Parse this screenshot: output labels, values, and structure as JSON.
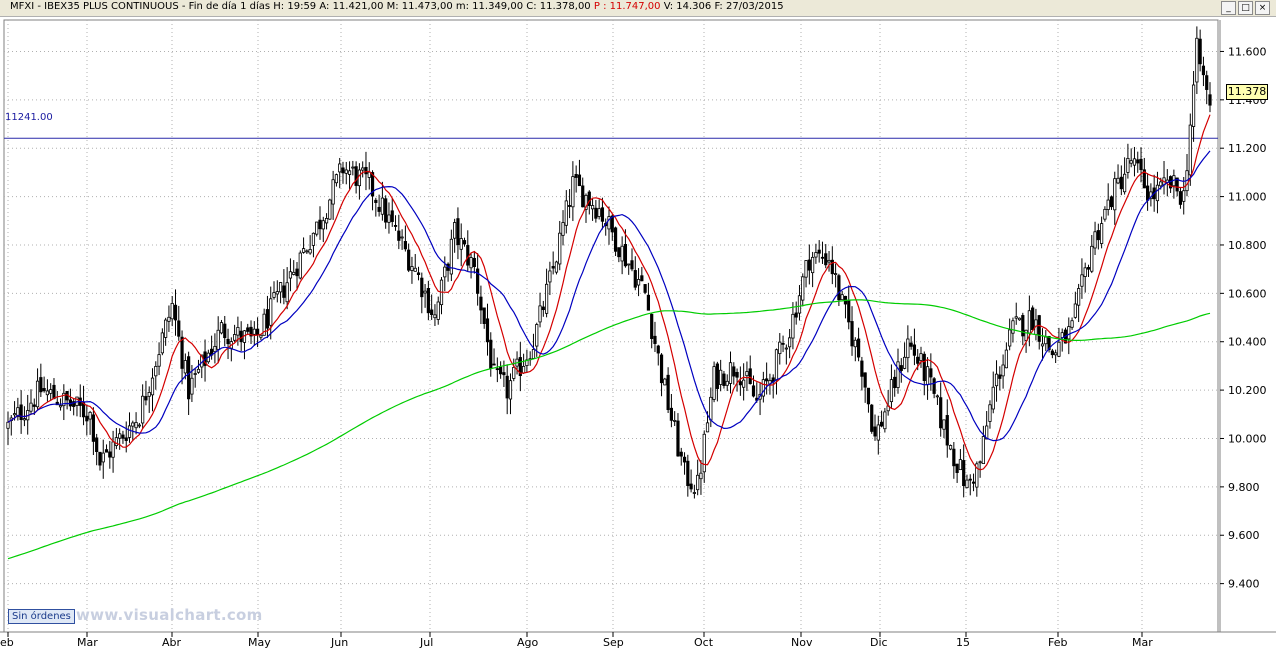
{
  "window": {
    "title_prefix": "MFXI - IBEX35 PLUS CONTINUOUS - Fin de día 1 días  H: 19:59  A: 11.421,00  M: 11.473,00  m: 11.349,00  C: 11.378,00",
    "title_p": "P : 11.747,00",
    "title_suffix": "V: 14.306  F: 27/03/2015",
    "buttons": {
      "minimize": "_",
      "maximize": "□",
      "close": "×"
    }
  },
  "badge": "Sin órdenes",
  "watermark": "www.visualchart.com",
  "current_price_label": "11.378",
  "reference_line_label": "11241.00",
  "colors": {
    "candle": "#000000",
    "ma_fast": "#d40000",
    "ma_mid": "#0000c0",
    "ma_slow": "#00cc00",
    "reference": "#2a2aaa",
    "grid": "#b0b0b0"
  },
  "chart_data": {
    "type": "candlestick",
    "instrument": "IBEX35 PLUS CONTINUOUS",
    "x_axis_labels": [
      "eb",
      "Mar",
      "Abr",
      "May",
      "Jun",
      "Jul",
      "Ago",
      "Sep",
      "Oct",
      "Nov",
      "Dic",
      "15",
      "Feb",
      "Mar"
    ],
    "y_axis_labels": [
      "9.400",
      "9.600",
      "9.800",
      "10.000",
      "10.200",
      "10.400",
      "10.600",
      "10.800",
      "11.000",
      "11.200",
      "11.400",
      "11.600"
    ],
    "ylim": [
      9200,
      11730
    ],
    "grid": true,
    "reference_line": 11241,
    "last": {
      "open": 11421,
      "high": 11473,
      "low": 11349,
      "close": 11378,
      "volume": 14306,
      "date": "27/03/2015"
    },
    "trend_anchors": [
      [
        0,
        10050
      ],
      [
        10,
        10200
      ],
      [
        25,
        10100
      ],
      [
        28,
        9900
      ],
      [
        40,
        10100
      ],
      [
        50,
        10550
      ],
      [
        55,
        10200
      ],
      [
        65,
        10450
      ],
      [
        75,
        10400
      ],
      [
        85,
        10650
      ],
      [
        95,
        10900
      ],
      [
        102,
        11120
      ],
      [
        110,
        11050
      ],
      [
        118,
        10850
      ],
      [
        124,
        10700
      ],
      [
        130,
        10500
      ],
      [
        136,
        10850
      ],
      [
        142,
        10700
      ],
      [
        148,
        10250
      ],
      [
        152,
        10200
      ],
      [
        160,
        10400
      ],
      [
        166,
        10700
      ],
      [
        172,
        11050
      ],
      [
        180,
        10950
      ],
      [
        186,
        10800
      ],
      [
        194,
        10600
      ],
      [
        200,
        10200
      ],
      [
        206,
        9850
      ],
      [
        210,
        9800
      ],
      [
        215,
        10250
      ],
      [
        222,
        10300
      ],
      [
        228,
        10150
      ],
      [
        232,
        10250
      ],
      [
        238,
        10450
      ],
      [
        244,
        10750
      ],
      [
        250,
        10750
      ],
      [
        254,
        10550
      ],
      [
        260,
        10300
      ],
      [
        264,
        10000
      ],
      [
        268,
        10150
      ],
      [
        274,
        10400
      ],
      [
        280,
        10250
      ],
      [
        286,
        10000
      ],
      [
        292,
        9800
      ],
      [
        296,
        9900
      ],
      [
        300,
        10200
      ],
      [
        306,
        10450
      ],
      [
        312,
        10500
      ],
      [
        318,
        10350
      ],
      [
        324,
        10450
      ],
      [
        330,
        10800
      ],
      [
        336,
        11000
      ],
      [
        342,
        11150
      ],
      [
        348,
        11000
      ],
      [
        354,
        11050
      ],
      [
        358,
        11000
      ],
      [
        362,
        11600
      ],
      [
        366,
        11380
      ]
    ],
    "candle_count": 367,
    "series": [
      {
        "name": "",
        "type": "moving-average",
        "color": "#d40000"
      },
      {
        "name": "",
        "type": "moving-average",
        "color": "#0000c0"
      },
      {
        "name": "",
        "type": "moving-average",
        "color": "#00cc00"
      }
    ]
  }
}
